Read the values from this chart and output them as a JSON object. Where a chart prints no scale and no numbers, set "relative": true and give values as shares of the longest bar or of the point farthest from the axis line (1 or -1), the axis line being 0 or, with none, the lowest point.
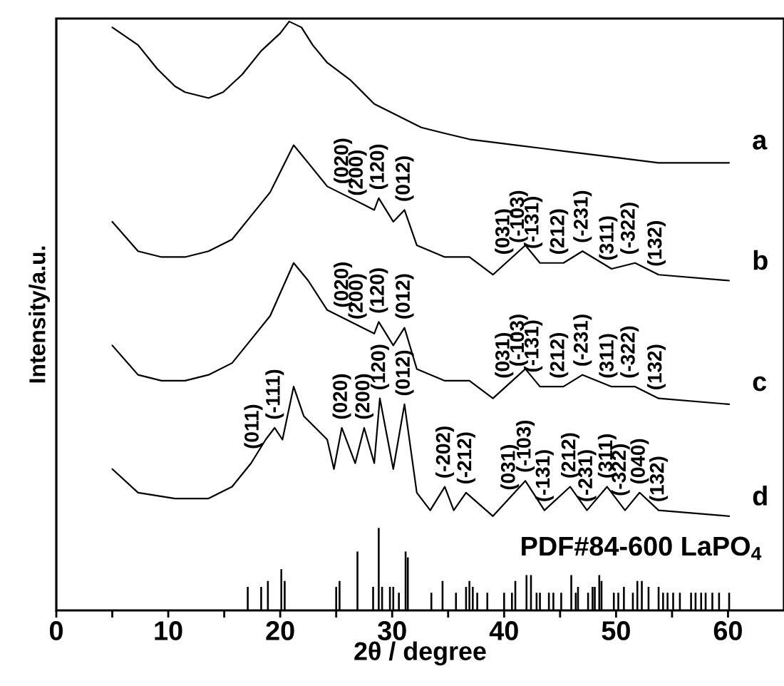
{
  "chart_data": {
    "type": "line",
    "relative": true,
    "xlabel": "2θ / degree",
    "ylabel": "Intensity/a.u.",
    "tick_labels": "x",
    "xlim": [
      0,
      65
    ],
    "xticks": [
      0,
      {
        "value": 5,
        "label": null
      },
      10,
      {
        "value": 15,
        "label": null
      },
      20,
      {
        "value": 25,
        "label": null
      },
      30,
      {
        "value": 35,
        "label": null
      },
      40,
      {
        "value": 45,
        "label": null
      },
      50,
      {
        "value": 55,
        "label": null
      },
      60
    ],
    "series": [
      {
        "name": "a",
        "color": "#000000",
        "x": [
          5.0,
          7.3,
          9.0,
          10.6,
          11.5,
          13.6,
          14.9,
          16.6,
          18.3,
          20.0,
          20.8,
          21.9,
          22.9,
          24.2,
          26.3,
          28.4,
          30.5,
          32.6,
          34.7,
          36.9,
          41.1,
          45.3,
          49.6,
          53.8,
          60.1
        ],
        "values": [
          0.99,
          0.96,
          0.92,
          0.89,
          0.88,
          0.87,
          0.88,
          0.91,
          0.95,
          0.98,
          1.0,
          0.99,
          0.96,
          0.93,
          0.9,
          0.86,
          0.84,
          0.82,
          0.81,
          0.8,
          0.79,
          0.78,
          0.77,
          0.76,
          0.76
        ]
      },
      {
        "name": "b",
        "color": "#000000",
        "x": [
          5.0,
          7.3,
          9.4,
          11.5,
          13.6,
          15.7,
          17.4,
          19.1,
          21.2,
          22.5,
          24.2,
          26.3,
          28.4,
          28.8,
          30.1,
          31.1,
          32.2,
          34.7,
          36.9,
          39.0,
          41.9,
          43.2,
          45.3,
          47.0,
          49.6,
          51.7,
          53.8,
          60.1
        ],
        "values": [
          0.66,
          0.61,
          0.6,
          0.6,
          0.61,
          0.63,
          0.67,
          0.71,
          0.79,
          0.76,
          0.72,
          0.7,
          0.68,
          0.7,
          0.66,
          0.68,
          0.62,
          0.6,
          0.6,
          0.57,
          0.62,
          0.59,
          0.59,
          0.61,
          0.58,
          0.59,
          0.57,
          0.56
        ]
      },
      {
        "name": "c",
        "color": "#000000",
        "x": [
          5.0,
          7.3,
          9.4,
          11.5,
          13.6,
          15.7,
          17.4,
          19.1,
          21.2,
          22.5,
          24.2,
          26.3,
          28.4,
          28.8,
          30.1,
          31.1,
          32.2,
          34.7,
          36.9,
          39.0,
          41.9,
          43.2,
          45.3,
          47.0,
          49.6,
          51.7,
          53.8,
          60.1
        ],
        "values": [
          0.45,
          0.4,
          0.39,
          0.39,
          0.4,
          0.42,
          0.46,
          0.5,
          0.59,
          0.56,
          0.51,
          0.49,
          0.47,
          0.49,
          0.45,
          0.48,
          0.41,
          0.39,
          0.39,
          0.36,
          0.41,
          0.38,
          0.38,
          0.4,
          0.38,
          0.38,
          0.36,
          0.35
        ]
      },
      {
        "name": "d",
        "color": "#000000",
        "x": [
          5.0,
          7.3,
          10.6,
          13.6,
          15.7,
          17.4,
          18.7,
          19.5,
          20.2,
          21.2,
          22.1,
          24.2,
          24.8,
          25.5,
          26.7,
          27.5,
          28.4,
          28.9,
          30.1,
          31.1,
          32.2,
          33.4,
          34.7,
          35.5,
          36.6,
          39.0,
          41.9,
          43.6,
          45.9,
          47.4,
          49.2,
          50.8,
          52.1,
          53.8,
          60.1
        ],
        "values": [
          0.24,
          0.2,
          0.19,
          0.19,
          0.21,
          0.25,
          0.29,
          0.31,
          0.29,
          0.38,
          0.33,
          0.29,
          0.24,
          0.31,
          0.25,
          0.31,
          0.25,
          0.36,
          0.24,
          0.35,
          0.2,
          0.17,
          0.21,
          0.17,
          0.2,
          0.16,
          0.22,
          0.17,
          0.21,
          0.17,
          0.21,
          0.17,
          0.2,
          0.17,
          0.16
        ]
      },
      {
        "name": "PDF#84-600 LaPO$_{4}$",
        "type": "bar",
        "color": "#000000",
        "x": [
          17.1,
          18.3,
          18.9,
          20.1,
          20.4,
          25.0,
          25.3,
          26.9,
          28.3,
          28.8,
          29.1,
          29.8,
          30.1,
          30.6,
          31.2,
          31.4,
          33.5,
          34.5,
          35.7,
          36.6,
          36.9,
          37.2,
          37.6,
          38.5,
          40.0,
          40.7,
          41.0,
          42.0,
          42.4,
          42.9,
          43.2,
          44.0,
          44.4,
          45.1,
          46.0,
          46.4,
          46.6,
          47.5,
          47.9,
          48.1,
          48.5,
          48.7,
          49.8,
          50.2,
          50.7,
          51.5,
          51.9,
          52.3,
          52.9,
          53.8,
          54.2,
          54.6,
          55.1,
          55.7,
          56.7,
          57.1,
          57.6,
          58.0,
          58.6,
          59.2,
          60.1
        ],
        "values": [
          0.04,
          0.04,
          0.05,
          0.07,
          0.05,
          0.04,
          0.05,
          0.1,
          0.04,
          0.14,
          0.04,
          0.04,
          0.04,
          0.03,
          0.1,
          0.09,
          0.03,
          0.05,
          0.03,
          0.04,
          0.05,
          0.04,
          0.03,
          0.03,
          0.03,
          0.03,
          0.05,
          0.06,
          0.06,
          0.03,
          0.03,
          0.03,
          0.03,
          0.03,
          0.06,
          0.03,
          0.04,
          0.03,
          0.04,
          0.04,
          0.06,
          0.05,
          0.03,
          0.03,
          0.04,
          0.03,
          0.05,
          0.05,
          0.04,
          0.04,
          0.03,
          0.03,
          0.03,
          0.03,
          0.03,
          0.03,
          0.03,
          0.03,
          0.03,
          0.03,
          0.03
        ]
      }
    ],
    "annotations": [
      {
        "text": "(020)",
        "x": 25.6,
        "y": 0.71
      },
      {
        "text": "(200)",
        "x": 26.9,
        "y": 0.69
      },
      {
        "text": "(120)",
        "x": 28.8,
        "y": 0.7
      },
      {
        "text": "(012)",
        "x": 31.1,
        "y": 0.68
      },
      {
        "text": "(031)",
        "x": 40.0,
        "y": 0.59
      },
      {
        "text": "(-103)",
        "x": 41.3,
        "y": 0.61
      },
      {
        "text": "(-131)",
        "x": 42.6,
        "y": 0.6
      },
      {
        "text": "(212)",
        "x": 44.9,
        "y": 0.59
      },
      {
        "text": "(-231)",
        "x": 47.0,
        "y": 0.61
      },
      {
        "text": "(311)",
        "x": 49.3,
        "y": 0.58
      },
      {
        "text": "(-322)",
        "x": 51.2,
        "y": 0.59
      },
      {
        "text": "(132)",
        "x": 53.6,
        "y": 0.57
      },
      {
        "text": "(020)",
        "x": 25.6,
        "y": 0.5
      },
      {
        "text": "(200)",
        "x": 26.9,
        "y": 0.48
      },
      {
        "text": "(120)",
        "x": 28.8,
        "y": 0.49
      },
      {
        "text": "(012)",
        "x": 31.1,
        "y": 0.48
      },
      {
        "text": "(031)",
        "x": 40.0,
        "y": 0.38
      },
      {
        "text": "(-103)",
        "x": 41.3,
        "y": 0.4
      },
      {
        "text": "(-131)",
        "x": 42.6,
        "y": 0.39
      },
      {
        "text": "(212)",
        "x": 44.9,
        "y": 0.38
      },
      {
        "text": "(-231)",
        "x": 47.0,
        "y": 0.4
      },
      {
        "text": "(311)",
        "x": 49.3,
        "y": 0.38
      },
      {
        "text": "(-322)",
        "x": 51.2,
        "y": 0.38
      },
      {
        "text": "(132)",
        "x": 53.6,
        "y": 0.36
      },
      {
        "text": "(011)",
        "x": 17.6,
        "y": 0.26
      },
      {
        "text": "(-111)",
        "x": 19.5,
        "y": 0.31
      },
      {
        "text": "(020)",
        "x": 25.5,
        "y": 0.31
      },
      {
        "text": "(200)",
        "x": 27.5,
        "y": 0.31
      },
      {
        "text": "(120)",
        "x": 28.9,
        "y": 0.36
      },
      {
        "text": "(012)",
        "x": 31.1,
        "y": 0.35
      },
      {
        "text": "(-202)",
        "x": 34.7,
        "y": 0.21
      },
      {
        "text": "(-212)",
        "x": 36.6,
        "y": 0.2
      },
      {
        "text": "(031)",
        "x": 40.5,
        "y": 0.19
      },
      {
        "text": "(-103)",
        "x": 41.9,
        "y": 0.22
      },
      {
        "text": "(-131)",
        "x": 43.6,
        "y": 0.17
      },
      {
        "text": "(212)",
        "x": 45.9,
        "y": 0.21
      },
      {
        "text": "(-231)",
        "x": 47.4,
        "y": 0.17
      },
      {
        "text": "(311)",
        "x": 49.2,
        "y": 0.21
      },
      {
        "text": "(-322)",
        "x": 50.4,
        "y": 0.18
      },
      {
        "text": "(040)",
        "x": 52.1,
        "y": 0.2
      },
      {
        "text": "(132)",
        "x": 53.8,
        "y": 0.17
      }
    ]
  }
}
